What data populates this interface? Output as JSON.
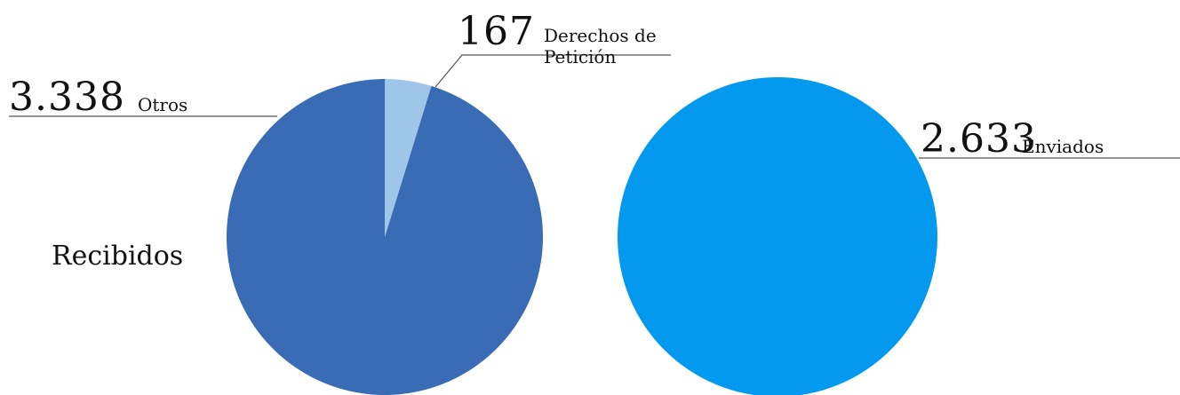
{
  "chart_data": [
    {
      "type": "pie",
      "title": "Recibidos",
      "categories": [
        "Derechos de Petición",
        "Otros"
      ],
      "values": [
        167,
        3338
      ],
      "value_labels": [
        "167",
        "3.338"
      ],
      "colors": [
        "#9fc5e8",
        "#3a6bb5"
      ]
    },
    {
      "type": "pie",
      "categories": [
        "Enviados"
      ],
      "values": [
        2633
      ],
      "value_labels": [
        "2.633"
      ],
      "colors": [
        "#0399ef"
      ]
    }
  ]
}
